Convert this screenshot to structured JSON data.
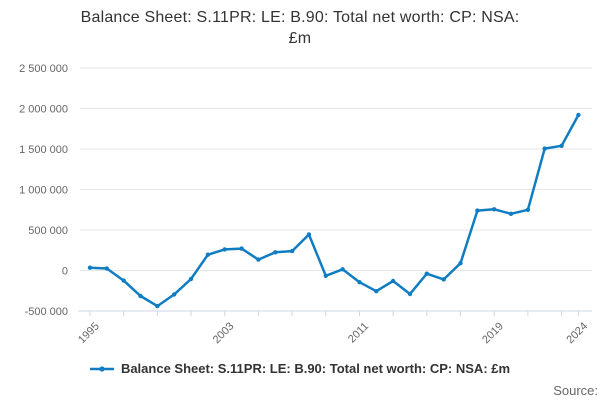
{
  "title": {
    "text": "Balance Sheet: S.11PR: LE: B.90: Total net worth: CP: NSA: £m",
    "lines": [
      "Balance Sheet: S.11PR: LE: B.90: Total net worth: CP: NSA:",
      "£m"
    ]
  },
  "legend": {
    "label": "Balance Sheet: S.11PR: LE: B.90: Total net worth: CP: NSA: £m",
    "marker": "line-with-dot"
  },
  "source_label": "Source:",
  "colors": {
    "line": "#107dc2",
    "marker": "#107dc2",
    "grid": "#e6e6e6",
    "axis": "#ccd6eb",
    "tick": "#ccd6eb",
    "axis_label": "#666666",
    "title": "#333333",
    "legend_text": "#333333",
    "background": "#ffffff"
  },
  "chart_data": {
    "type": "line",
    "title": "Balance Sheet: S.11PR: LE: B.90: Total net worth: CP: NSA: £m",
    "xlabel": "",
    "ylabel": "",
    "x": [
      1995,
      1996,
      1997,
      1998,
      1999,
      2000,
      2001,
      2002,
      2003,
      2004,
      2005,
      2006,
      2007,
      2008,
      2009,
      2010,
      2011,
      2012,
      2013,
      2014,
      2015,
      2016,
      2017,
      2018,
      2019,
      2020,
      2021,
      2022,
      2023,
      2024
    ],
    "series": [
      {
        "name": "Balance Sheet: S.11PR: LE: B.90: Total net worth: CP: NSA: £m",
        "values": [
          35000,
          25000,
          -125000,
          -315000,
          -440000,
          -295000,
          -105000,
          195000,
          260000,
          270000,
          135000,
          225000,
          240000,
          445000,
          -65000,
          15000,
          -145000,
          -255000,
          -130000,
          -290000,
          -40000,
          -110000,
          90000,
          740000,
          755000,
          700000,
          750000,
          1505000,
          1540000,
          1920000
        ]
      }
    ],
    "ylim": [
      -500000,
      2500000
    ],
    "ytick_values": [
      -500000,
      0,
      500000,
      1000000,
      1500000,
      2000000,
      2500000
    ],
    "ytick_labels": [
      "-500 000",
      "0",
      "500 000",
      "1 000 000",
      "1 500 000",
      "2 000 000",
      "2 500 000"
    ],
    "xticks_minor": [
      1995,
      1997,
      1999,
      2001,
      2003,
      2005,
      2007,
      2009,
      2011,
      2013,
      2015,
      2017,
      2019,
      2021,
      2023,
      2024
    ],
    "xticks_labeled": [
      {
        "year": 1995,
        "label": "1995"
      },
      {
        "year": 2003,
        "label": "2003"
      },
      {
        "year": 2011,
        "label": "2011"
      },
      {
        "year": 2019,
        "label": "2019"
      },
      {
        "year": 2024,
        "label": "2024"
      }
    ],
    "grid": true,
    "legend_position": "bottom"
  }
}
